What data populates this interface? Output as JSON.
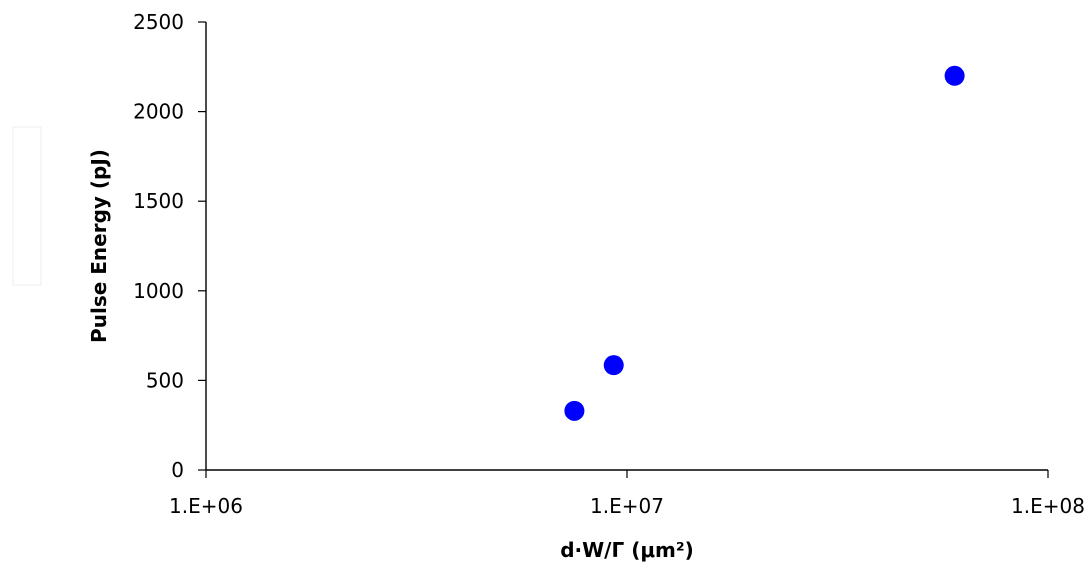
{
  "chart_data": {
    "type": "scatter",
    "title": "",
    "xlabel": "d·W/Γ (μm²)",
    "ylabel": "Pulse Energy (pJ)",
    "xscale": "log",
    "xlim": [
      1000000,
      100000000
    ],
    "ylim": [
      0,
      2500
    ],
    "x_ticks": [
      1000000,
      10000000,
      100000000
    ],
    "x_tick_labels": [
      "1.E+06",
      "1.E+07",
      "1.E+08"
    ],
    "y_ticks": [
      0,
      500,
      1000,
      1500,
      2000,
      2500
    ],
    "y_tick_labels": [
      "0",
      "500",
      "1000",
      "1500",
      "2000",
      "2500"
    ],
    "grid": false,
    "legend": "none",
    "series": [
      {
        "color": "#0000ff",
        "points": [
          {
            "x": 7500000,
            "y": 330
          },
          {
            "x": 9300000,
            "y": 585
          },
          {
            "x": 60000000,
            "y": 2200
          }
        ]
      }
    ]
  }
}
